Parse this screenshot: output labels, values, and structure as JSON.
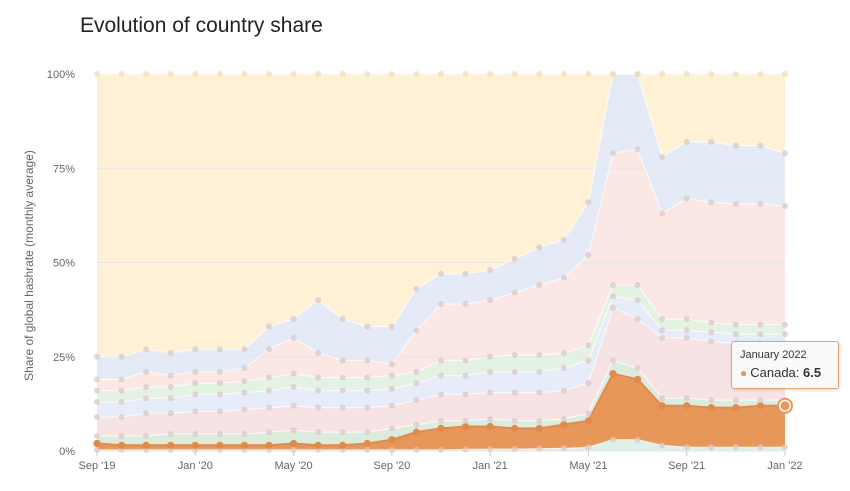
{
  "chart_data": {
    "type": "area",
    "stacked": true,
    "title": "Evolution of country share",
    "ylabel": "Share of global hashrate (monthly average)",
    "xlabel": "",
    "ylim": [
      0,
      100
    ],
    "y_ticks": [
      "0%",
      "25%",
      "50%",
      "75%",
      "100%"
    ],
    "x_ticks": [
      {
        "label": "Sep '19",
        "index": 0
      },
      {
        "label": "Jan '20",
        "index": 4
      },
      {
        "label": "May '20",
        "index": 8
      },
      {
        "label": "Sep '20",
        "index": 12
      },
      {
        "label": "Jan '21",
        "index": 16
      },
      {
        "label": "May '21",
        "index": 20
      },
      {
        "label": "Sep '21",
        "index": 24
      },
      {
        "label": "Jan '22",
        "index": 28
      }
    ],
    "x": [
      "Sep 2019",
      "Oct 2019",
      "Nov 2019",
      "Dec 2019",
      "Jan 2020",
      "Feb 2020",
      "Mar 2020",
      "Apr 2020",
      "May 2020",
      "Jun 2020",
      "Jul 2020",
      "Aug 2020",
      "Sep 2020",
      "Oct 2020",
      "Nov 2020",
      "Dec 2020",
      "Jan 2021",
      "Feb 2021",
      "Mar 2021",
      "Apr 2021",
      "May 2021",
      "Jun 2021",
      "Jul 2021",
      "Aug 2021",
      "Sep 2021",
      "Oct 2021",
      "Nov 2021",
      "Dec 2021",
      "Jan 2022"
    ],
    "grid": true,
    "colors": {
      "layer_bottom": "#def0e8",
      "canada": "#e8975a",
      "layer_green_1": "#dcecdc",
      "layer_pink_1": "#f7e3e3",
      "layer_blue_1": "#e6ecf8",
      "layer_green_2": "#e4f2e4",
      "layer_pink_2": "#fbe7e3",
      "layer_blue_2": "#e4ebf7",
      "layer_top": "#fef1d6",
      "grid": "#e6e6e6",
      "tooltip_border": "#e7a56e"
    },
    "tooltip": {
      "date": "January 2022",
      "series": "Canada",
      "separator": ":",
      "value": "6.5"
    }
  }
}
